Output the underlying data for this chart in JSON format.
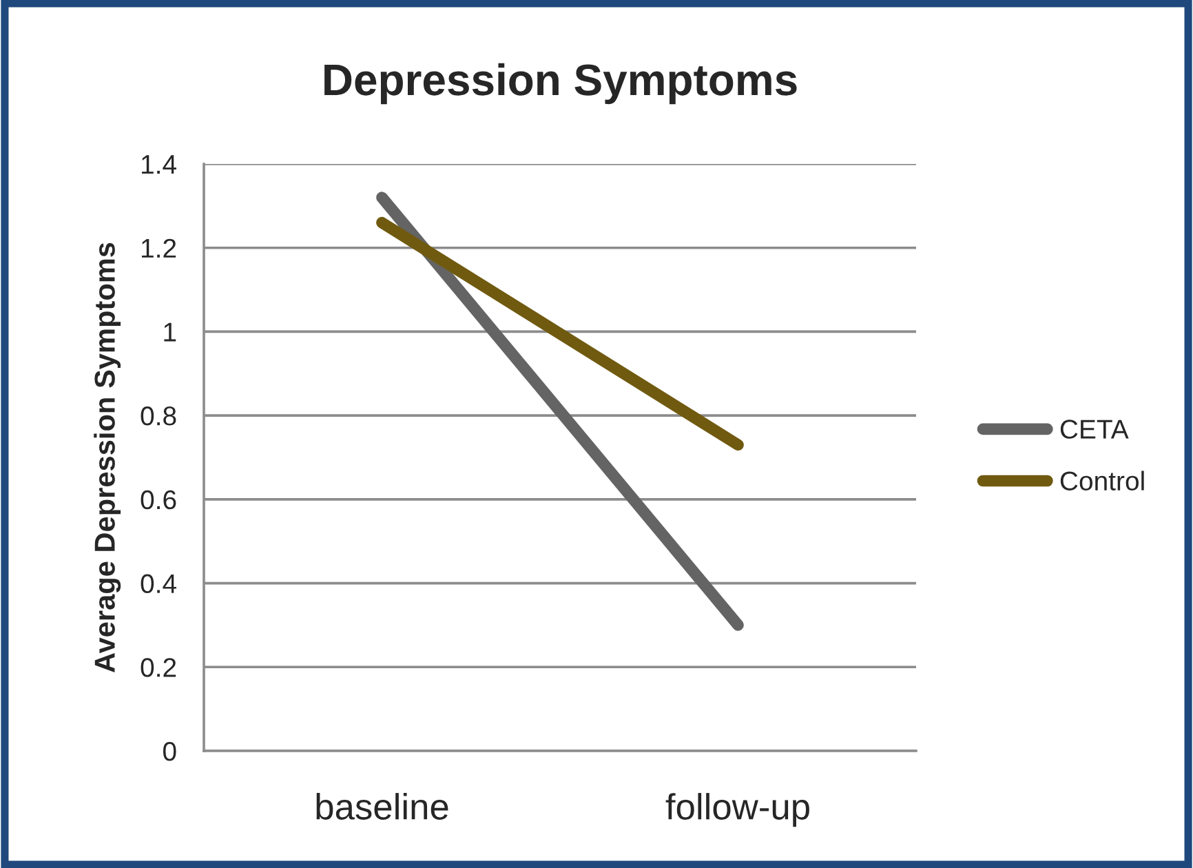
{
  "chart_data": {
    "type": "line",
    "title": "Depression Symptoms",
    "ylabel": "Average Depression Symptoms",
    "categories": [
      "baseline",
      "follow-up"
    ],
    "series": [
      {
        "name": "CETA",
        "color": "#646464",
        "values": [
          1.32,
          0.3
        ]
      },
      {
        "name": "Control",
        "color": "#705a10",
        "values": [
          1.26,
          0.73
        ]
      }
    ],
    "ylim": [
      0,
      1.4
    ],
    "yticks": [
      0,
      0.2,
      0.4,
      0.6,
      0.8,
      1,
      1.2,
      1.4
    ],
    "grid": "y",
    "legend": "right",
    "marker": "none",
    "line_style": "solid"
  }
}
